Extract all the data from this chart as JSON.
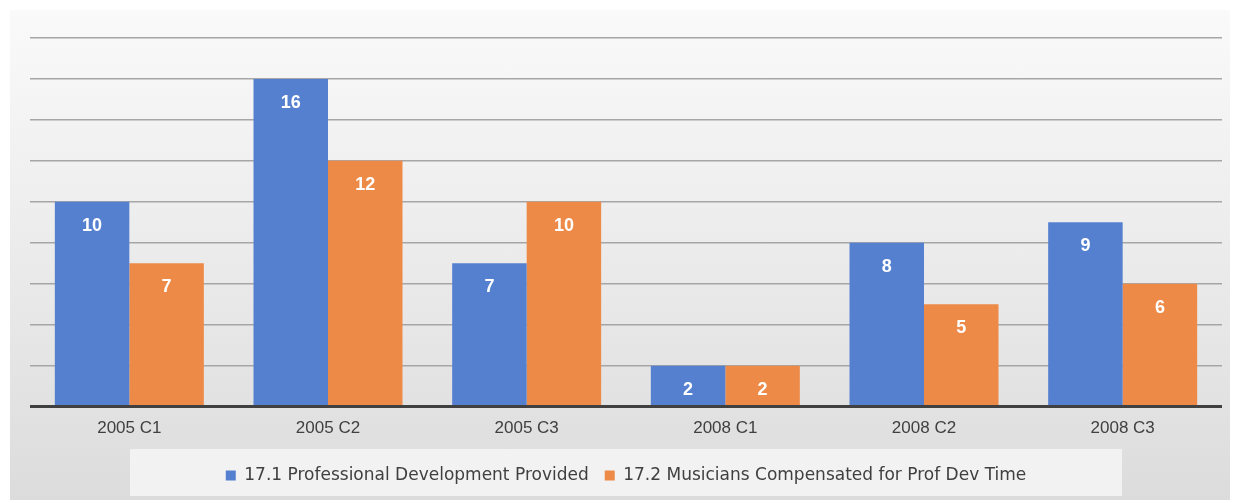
{
  "chart_data": {
    "type": "bar",
    "categories": [
      "2005 C1",
      "2005 C2",
      "2005 C3",
      "2008 C1",
      "2008 C2",
      "2008 C3"
    ],
    "series": [
      {
        "name": "17.1 Professional Development Provided",
        "color": "#5580d0",
        "values": [
          10,
          16,
          7,
          2,
          8,
          9
        ]
      },
      {
        "name": "17.2 Musicians Compensated for Prof Dev Time",
        "color": "#ee8a48",
        "values": [
          7,
          12,
          10,
          2,
          5,
          6
        ]
      }
    ],
    "ylim": [
      0,
      18
    ],
    "yticks": [
      {
        "value": 0,
        "label": null
      },
      {
        "value": 2,
        "label": null
      },
      {
        "value": 4,
        "label": null
      },
      {
        "value": 6,
        "label": null
      },
      {
        "value": 8,
        "label": null
      },
      {
        "value": 10,
        "label": null
      },
      {
        "value": 12,
        "label": null
      },
      {
        "value": 14,
        "label": null
      },
      {
        "value": 16,
        "label": null
      },
      {
        "value": 18,
        "label": null
      }
    ],
    "tick_labels": "x",
    "grid": "y",
    "legend": "bottom",
    "data_labels": true
  }
}
